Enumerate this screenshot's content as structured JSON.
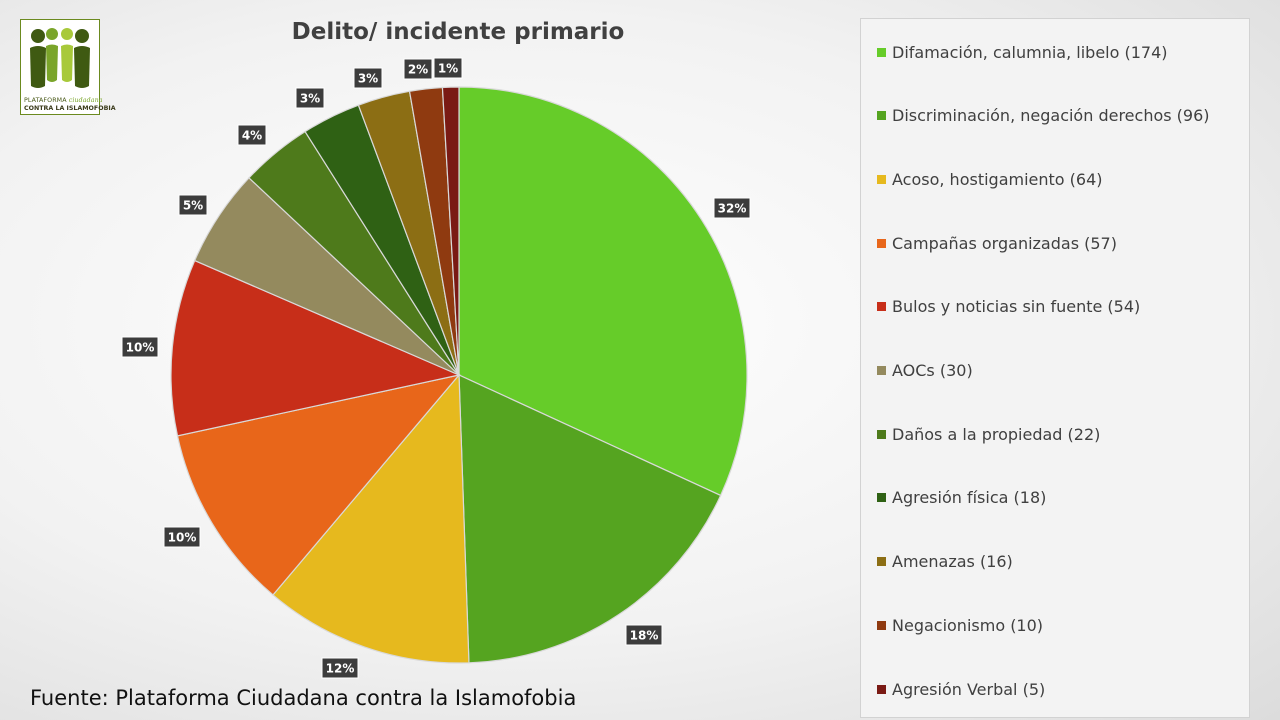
{
  "logo": {
    "icon": "people-figures-icon",
    "line1_prefix": "PLATAFORMA",
    "line1_script": "ciudadana",
    "line2": "CONTRA LA ISLAMOFOBIA",
    "colors": [
      "#3f5a12",
      "#7aa52a",
      "#a8c93a"
    ]
  },
  "source_text": "Fuente: Plataforma Ciudadana contra la Islamofobia",
  "chart_data": {
    "type": "pie",
    "title": "Delito/ incidente primario",
    "legend_position": "right",
    "slices": [
      {
        "legend": "Difamación, calumnia, libelo (174)",
        "value": 174,
        "pct_label": "32%",
        "color": "#66cc29"
      },
      {
        "legend": "Discriminación, negación derechos (96)",
        "value": 96,
        "pct_label": "18%",
        "color": "#55a420"
      },
      {
        "legend": "Acoso, hostigamiento (64)",
        "value": 64,
        "pct_label": "12%",
        "color": "#e6b91e"
      },
      {
        "legend": "Campañas organizadas (57)",
        "value": 57,
        "pct_label": "10%",
        "color": "#e8661a"
      },
      {
        "legend": "Bulos y noticias sin fuente (54)",
        "value": 54,
        "pct_label": "10%",
        "color": "#c72e19"
      },
      {
        "legend": "AOCs (30)",
        "value": 30,
        "pct_label": "5%",
        "color": "#948a5e"
      },
      {
        "legend": "Daños a la propiedad (22)",
        "value": 22,
        "pct_label": "4%",
        "color": "#4e7a1b"
      },
      {
        "legend": "Agresión física (18)",
        "value": 18,
        "pct_label": "3%",
        "color": "#2f6114"
      },
      {
        "legend": "Amenazas (16)",
        "value": 16,
        "pct_label": "3%",
        "color": "#8c6e14"
      },
      {
        "legend": "Negacionismo (10)",
        "value": 10,
        "pct_label": "2%",
        "color": "#8f3a10"
      },
      {
        "legend": "Agresión Verbal (5)",
        "value": 5,
        "pct_label": "1%",
        "color": "#7a1a14"
      }
    ]
  }
}
